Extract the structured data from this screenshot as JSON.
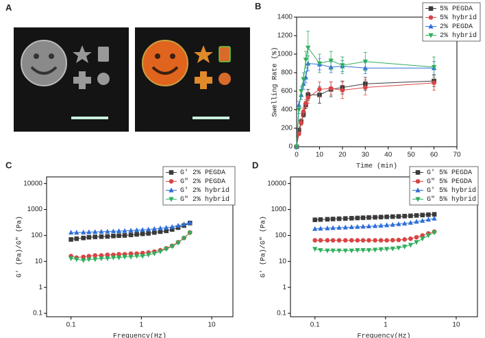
{
  "figure_a": {
    "label": "A"
  },
  "chart_data": [
    {
      "type": "line",
      "label": "B",
      "x_label": "Time (min)",
      "y_label": "Swelling Rate (%)",
      "x": [
        0,
        1,
        2,
        3,
        4,
        5,
        10,
        15,
        20,
        30,
        60
      ],
      "xlim": [
        0,
        70
      ],
      "xticks": [
        0,
        10,
        20,
        30,
        40,
        50,
        60,
        70
      ],
      "ylim": [
        0,
        1400
      ],
      "yticks": [
        0,
        200,
        400,
        600,
        800,
        1000,
        1200,
        1400
      ],
      "log_x": false,
      "log_y": false,
      "legend": "top-right",
      "series": [
        {
          "name": "5% PEGDA",
          "color": "#3a3a3a",
          "marker": "square",
          "values": [
            0,
            180,
            270,
            350,
            450,
            560,
            560,
            620,
            640,
            680,
            710
          ],
          "errors": [
            0,
            20,
            30,
            30,
            40,
            60,
            90,
            80,
            70,
            70,
            60
          ]
        },
        {
          "name": "5% hybrid",
          "color": "#d94444",
          "marker": "circle",
          "values": [
            0,
            140,
            260,
            380,
            470,
            530,
            620,
            630,
            610,
            640,
            690
          ],
          "errors": [
            0,
            20,
            30,
            40,
            40,
            60,
            80,
            70,
            90,
            80,
            80
          ]
        },
        {
          "name": "2% PEGDA",
          "color": "#2e6fd8",
          "marker": "triangle-up",
          "values": [
            0,
            450,
            560,
            680,
            750,
            900,
            890,
            860,
            870,
            850,
            850
          ],
          "errors": [
            0,
            40,
            50,
            60,
            60,
            80,
            60,
            60,
            60,
            60,
            70
          ]
        },
        {
          "name": "2% hybrid",
          "color": "#2fae5c",
          "marker": "triangle-down",
          "values": [
            0,
            400,
            600,
            730,
            940,
            1070,
            900,
            930,
            880,
            920,
            860
          ],
          "errors": [
            0,
            40,
            50,
            70,
            90,
            180,
            100,
            100,
            90,
            100,
            110
          ]
        }
      ]
    },
    {
      "type": "line",
      "label": "C",
      "x_label": "Frequency(Hz)",
      "y_label": "G′ (Pa)/G″ (Pa)",
      "x": [
        0.1,
        0.12,
        0.15,
        0.18,
        0.22,
        0.27,
        0.33,
        0.4,
        0.48,
        0.58,
        0.71,
        0.86,
        1.04,
        1.26,
        1.53,
        1.86,
        2.26,
        2.74,
        3.33,
        4.04,
        4.9
      ],
      "xlim": [
        0.045,
        20
      ],
      "xticks": [
        0.1,
        1,
        10
      ],
      "ylim": [
        0.074,
        18000
      ],
      "yticks": [
        0.1,
        1,
        10,
        100,
        1000,
        10000
      ],
      "log_x": true,
      "log_y": true,
      "legend": "top-right",
      "series": [
        {
          "name": "G′ 2% PEGDA",
          "color": "#3a3a3a",
          "marker": "square",
          "values": [
            70,
            75,
            80,
            85,
            88,
            90,
            92,
            95,
            98,
            100,
            105,
            110,
            115,
            120,
            130,
            140,
            150,
            170,
            200,
            240,
            300
          ]
        },
        {
          "name": "G″ 2% PEGDA",
          "color": "#d94444",
          "marker": "circle",
          "values": [
            16,
            14,
            15,
            16,
            17,
            17,
            18,
            18,
            19,
            19,
            20,
            20,
            21,
            22,
            24,
            27,
            32,
            40,
            55,
            80,
            130
          ]
        },
        {
          "name": "G′ 2% hybrid",
          "color": "#2e6fd8",
          "marker": "triangle-up",
          "values": [
            130,
            130,
            132,
            135,
            137,
            140,
            142,
            145,
            148,
            150,
            155,
            160,
            165,
            170,
            180,
            190,
            200,
            215,
            240,
            270,
            310
          ]
        },
        {
          "name": "G″ 2% hybrid",
          "color": "#2fae5c",
          "marker": "triangle-down",
          "values": [
            13,
            12,
            11,
            12,
            12,
            13,
            13,
            14,
            14,
            15,
            15,
            16,
            16,
            18,
            20,
            24,
            30,
            38,
            52,
            78,
            125
          ]
        }
      ]
    },
    {
      "type": "line",
      "label": "D",
      "x_label": "Frequency(Hz)",
      "y_label": "G′ (Pa)/G″ (Pa)",
      "x": [
        0.1,
        0.12,
        0.15,
        0.18,
        0.22,
        0.27,
        0.33,
        0.4,
        0.48,
        0.58,
        0.71,
        0.86,
        1.04,
        1.26,
        1.53,
        1.86,
        2.26,
        2.74,
        3.33,
        4.04,
        4.9
      ],
      "xlim": [
        0.045,
        20
      ],
      "xticks": [
        0.1,
        1,
        10
      ],
      "ylim": [
        0.074,
        18000
      ],
      "yticks": [
        0.1,
        1,
        10,
        100,
        1000,
        10000
      ],
      "log_x": true,
      "log_y": true,
      "legend": "top-right",
      "series": [
        {
          "name": "G′ 5% PEGDA",
          "color": "#3a3a3a",
          "marker": "square",
          "values": [
            400,
            410,
            420,
            430,
            440,
            450,
            460,
            470,
            480,
            490,
            500,
            510,
            520,
            530,
            540,
            555,
            570,
            590,
            610,
            630,
            650
          ]
        },
        {
          "name": "G″ 5% PEGDA",
          "color": "#d94444",
          "marker": "circle",
          "values": [
            65,
            65,
            65,
            65,
            65,
            65,
            65,
            65,
            65,
            65,
            65,
            65,
            65,
            66,
            67,
            70,
            75,
            85,
            100,
            120,
            140
          ]
        },
        {
          "name": "G′ 5% hybrid",
          "color": "#2e6fd8",
          "marker": "triangle-up",
          "values": [
            180,
            185,
            190,
            195,
            200,
            205,
            210,
            215,
            220,
            225,
            232,
            240,
            250,
            260,
            275,
            290,
            310,
            340,
            370,
            410,
            450
          ]
        },
        {
          "name": "G″ 5% hybrid",
          "color": "#2fae5c",
          "marker": "triangle-down",
          "values": [
            30,
            27,
            26,
            26,
            26,
            26,
            26,
            27,
            27,
            27,
            28,
            29,
            30,
            31,
            33,
            37,
            43,
            55,
            75,
            100,
            130
          ]
        }
      ]
    }
  ]
}
